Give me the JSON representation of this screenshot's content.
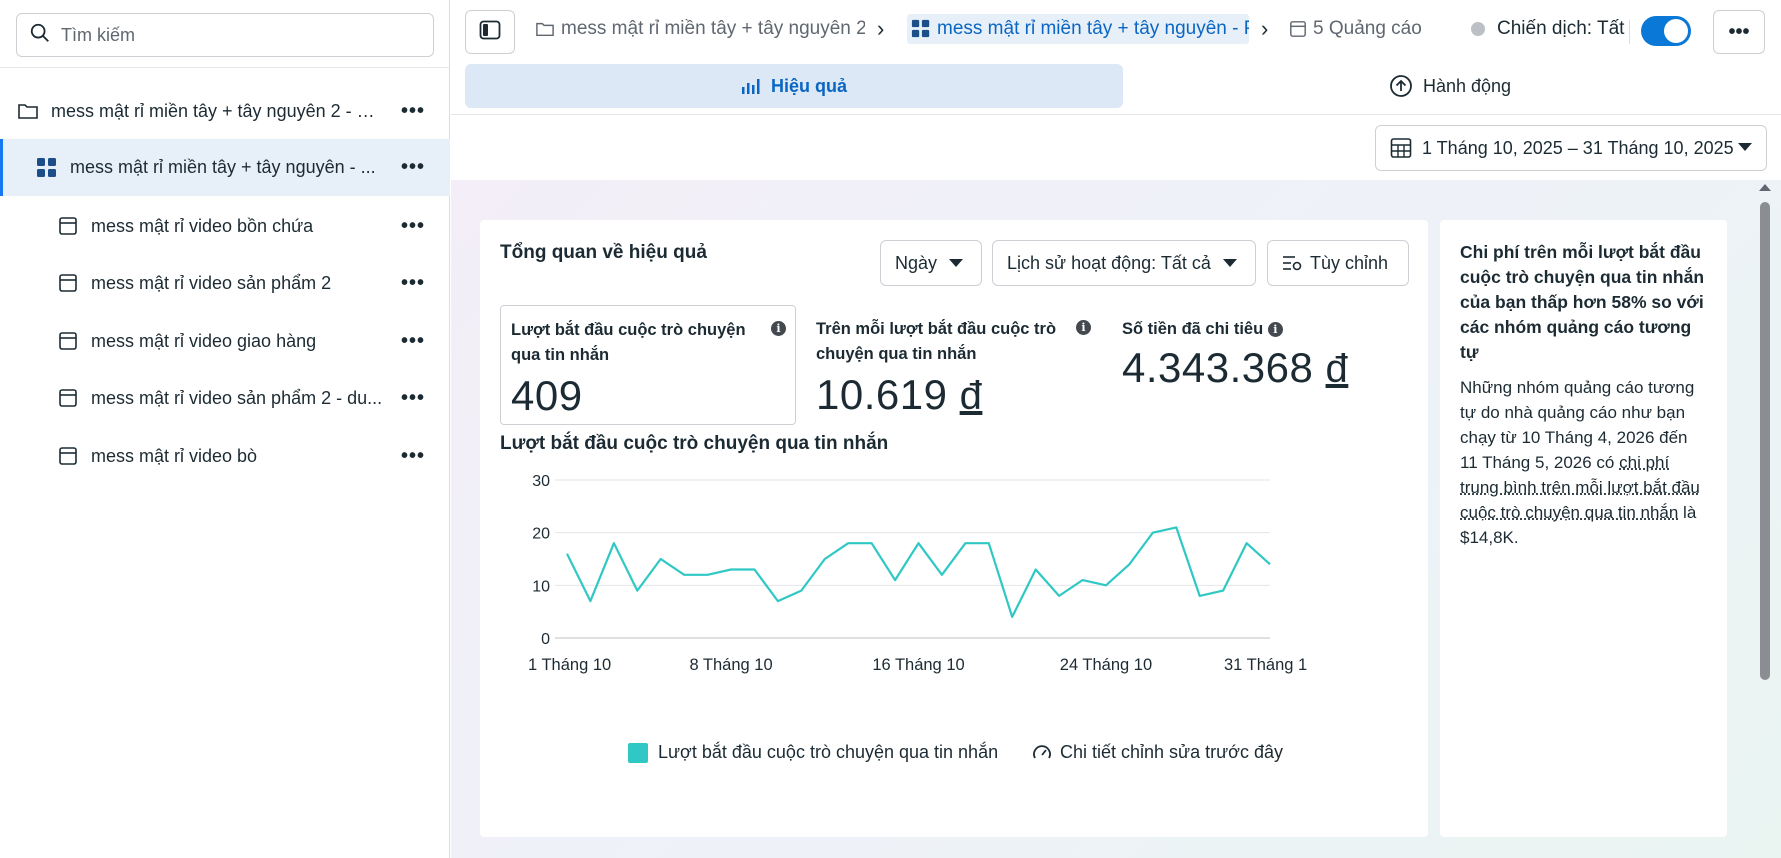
{
  "search": {
    "placeholder": "Tìm kiếm"
  },
  "sidebar": {
    "items": [
      {
        "label": "mess mật rỉ miền tây + tây nguyên 2 - 1...",
        "type": "campaign"
      },
      {
        "label": "mess mật rỉ miền tây + tây nguyên - ...",
        "type": "adset",
        "selected": true
      },
      {
        "label": "mess mật rỉ video bồn chứa",
        "type": "ad"
      },
      {
        "label": "mess mật rỉ video sản phẩm 2",
        "type": "ad"
      },
      {
        "label": "mess mật rỉ video giao hàng",
        "type": "ad"
      },
      {
        "label": "mess mật rỉ video sản phẩm 2 - du...",
        "type": "ad"
      },
      {
        "label": "mess mật rỉ video bò",
        "type": "ad"
      }
    ],
    "more_label": "•••"
  },
  "breadcrumb": {
    "campaign": "mess mật rỉ miền tây + tây nguyên 2 -",
    "adset": "mess mật rỉ miền tây + tây nguyên - P",
    "ads": "5 Quảng cáo"
  },
  "campaign_status": {
    "label": "Chiến dịch: Tất"
  },
  "more_button": "•••",
  "tabs": {
    "performance": "Hiệu quả",
    "actions": "Hành động"
  },
  "date_range": "1 Tháng 10, 2025 – 31 Tháng 10, 2025",
  "overview": {
    "title": "Tổng quan về hiệu quả",
    "granularity": "Ngày",
    "activity_history": "Lịch sử hoạt động: Tất cả",
    "customize": "Tùy chỉnh"
  },
  "metrics": [
    {
      "label": "Lượt bắt đầu cuộc trò chuyện qua tin nhắn",
      "value": "409",
      "currency": ""
    },
    {
      "label": "Trên mỗi lượt bắt đầu cuộc trò chuyện qua tin nhắn",
      "value": "10.619",
      "currency": "đ"
    },
    {
      "label": "Số tiền đã chi tiêu",
      "value": "4.343.368",
      "currency": "đ"
    }
  ],
  "chart_title": "Lượt bắt đầu cuộc trò chuyện qua tin nhắn",
  "chart_data": {
    "type": "line",
    "x": [
      "1 Tháng 10",
      "2 Tháng 10",
      "3 Tháng 10",
      "4 Tháng 10",
      "5 Tháng 10",
      "6 Tháng 10",
      "7 Tháng 10",
      "8 Tháng 10",
      "9 Tháng 10",
      "10 Tháng 10",
      "11 Tháng 10",
      "12 Tháng 10",
      "13 Tháng 10",
      "14 Tháng 10",
      "15 Tháng 10",
      "16 Tháng 10",
      "17 Tháng 10",
      "18 Tháng 10",
      "19 Tháng 10",
      "20 Tháng 10",
      "21 Tháng 10",
      "22 Tháng 10",
      "23 Tháng 10",
      "24 Tháng 10",
      "25 Tháng 10",
      "26 Tháng 10",
      "27 Tháng 10",
      "28 Tháng 10",
      "29 Tháng 10",
      "30 Tháng 10",
      "31 Tháng 10"
    ],
    "series": [
      {
        "name": "Lượt bắt đầu cuộc trò chuyện qua tin nhắn",
        "values": [
          16,
          7,
          18,
          9,
          15,
          12,
          12,
          13,
          13,
          7,
          9,
          15,
          18,
          18,
          11,
          18,
          12,
          18,
          18,
          4,
          13,
          8,
          11,
          10,
          14,
          20,
          21,
          8,
          9,
          18,
          14
        ],
        "color": "#2fc8c4"
      }
    ],
    "x_tick_labels": [
      "1 Tháng 10",
      "8 Tháng 10",
      "16 Tháng 10",
      "24 Tháng 10",
      "31 Tháng 1"
    ],
    "y_ticks": [
      "0",
      "10",
      "20",
      "30"
    ],
    "ylim": [
      0,
      30
    ],
    "grid": true,
    "legend_position": "bottom"
  },
  "legend": {
    "series_label": "Lượt bắt đầu cuộc trò chuyện qua tin nhắn",
    "edits_label": "Chi tiết chỉnh sửa trước đây"
  },
  "insight": {
    "headline": "Chi phí trên mỗi lượt bắt đầu cuộc trò chuyện qua tin nhắn của bạn thấp hơn 58% so với các nhóm quảng cáo tương tự",
    "body_prefix": "Những nhóm quảng cáo tương tự do nhà quảng cáo như bạn chạy từ 10 Tháng 4, 2026 đến 11 Tháng 5, 2026 có ",
    "body_link": "chi phí trung bình trên mỗi lượt bắt đầu cuộc trò chuyện qua tin nhắn",
    "body_suffix": " là $14,8K."
  }
}
